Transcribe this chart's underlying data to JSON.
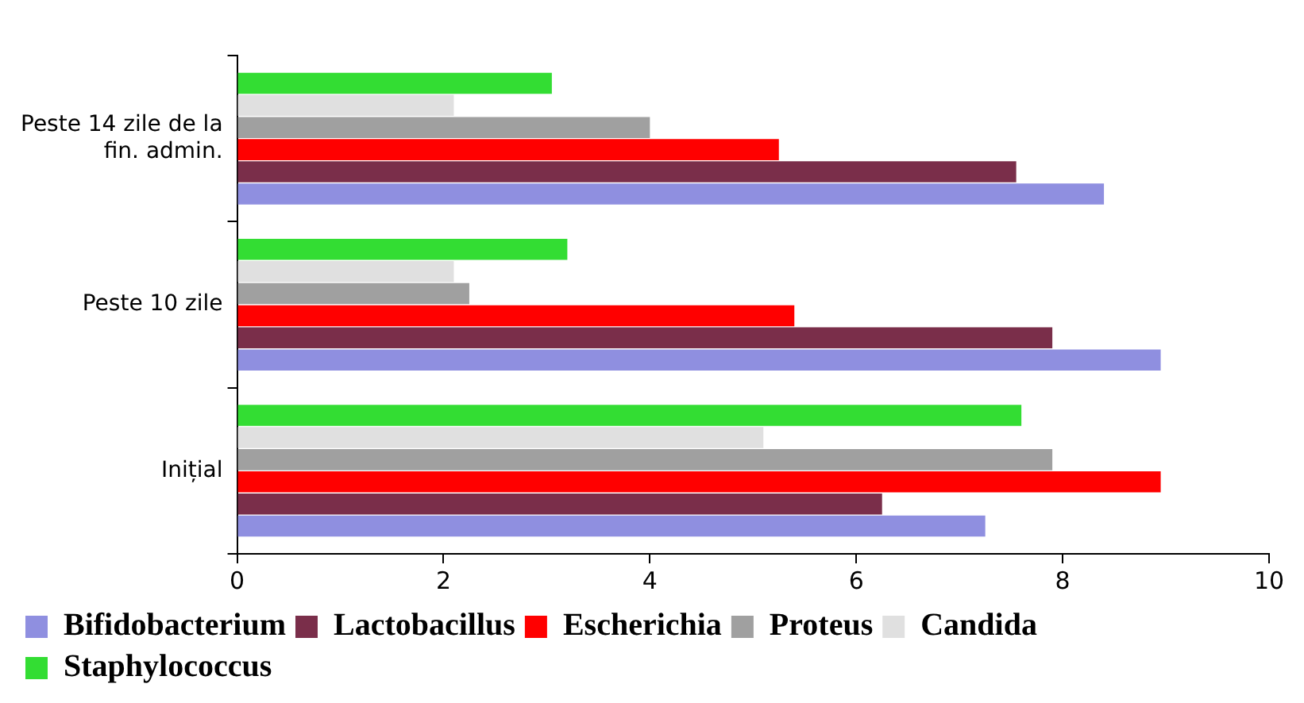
{
  "chart_data": {
    "type": "bar",
    "orientation": "horizontal",
    "categories": [
      "Peste 14 zile de la fin. admin.",
      "Peste 10 zile",
      "Inițial"
    ],
    "series": [
      {
        "name": "Bifidobacterium",
        "color": "#8f8fe0",
        "values": [
          8.4,
          8.95,
          7.25
        ]
      },
      {
        "name": "Lactobacillus",
        "color": "#7a2e4a",
        "values": [
          7.55,
          7.9,
          6.25
        ]
      },
      {
        "name": "Escherichia",
        "color": "#ff0000",
        "values": [
          5.25,
          5.4,
          8.95
        ]
      },
      {
        "name": "Proteus",
        "color": "#a0a0a0",
        "values": [
          4.0,
          2.25,
          7.9
        ]
      },
      {
        "name": "Candida",
        "color": "#e0e0e0",
        "values": [
          2.1,
          2.1,
          5.1
        ]
      },
      {
        "name": "Staphylococcus",
        "color": "#33dd33",
        "values": [
          3.05,
          3.2,
          7.6
        ]
      }
    ],
    "xlim": [
      0,
      10
    ],
    "xticks": [
      0,
      2,
      4,
      6,
      8,
      10
    ],
    "grid": false,
    "legend": "bottom"
  }
}
